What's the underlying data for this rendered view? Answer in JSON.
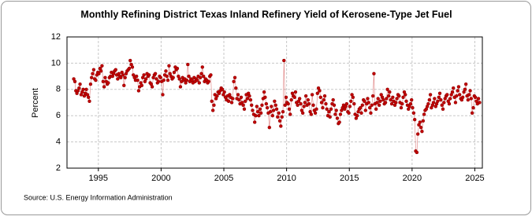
{
  "chart_data": {
    "type": "scatter",
    "title": "Monthly Refining District Texas Inland Refinery Yield of Kerosene-Type Jet Fuel",
    "y_label": "Percent",
    "source": "Source: U.S. Energy Information Administration",
    "color": "#c00000",
    "grid": true,
    "xlim": [
      1992.5,
      2025.6
    ],
    "xticks": [
      1995,
      2000,
      2005,
      2010,
      2015,
      2020,
      2025
    ],
    "ylim": [
      2,
      12
    ],
    "yticks": [
      2,
      4,
      6,
      8,
      10,
      12
    ],
    "x": [
      1993.04,
      1993.13,
      1993.21,
      1993.29,
      1993.38,
      1993.46,
      1993.54,
      1993.63,
      1993.71,
      1993.79,
      1993.88,
      1993.96,
      1994.04,
      1994.13,
      1994.21,
      1994.29,
      1994.38,
      1994.46,
      1994.54,
      1994.63,
      1994.71,
      1994.79,
      1994.88,
      1994.96,
      1995.04,
      1995.13,
      1995.21,
      1995.29,
      1995.38,
      1995.46,
      1995.54,
      1995.63,
      1995.71,
      1995.79,
      1995.88,
      1995.96,
      1996.04,
      1996.13,
      1996.21,
      1996.29,
      1996.38,
      1996.46,
      1996.54,
      1996.63,
      1996.71,
      1996.79,
      1996.88,
      1996.96,
      1997.04,
      1997.13,
      1997.21,
      1997.29,
      1997.38,
      1997.46,
      1997.54,
      1997.63,
      1997.71,
      1997.79,
      1997.88,
      1997.96,
      1998.04,
      1998.13,
      1998.21,
      1998.29,
      1998.38,
      1998.46,
      1998.54,
      1998.63,
      1998.71,
      1998.79,
      1998.88,
      1998.96,
      1999.04,
      1999.13,
      1999.21,
      1999.29,
      1999.38,
      1999.46,
      1999.54,
      1999.63,
      1999.71,
      1999.79,
      1999.88,
      1999.96,
      2000.04,
      2000.13,
      2000.21,
      2000.29,
      2000.38,
      2000.46,
      2000.54,
      2000.63,
      2000.71,
      2000.79,
      2000.88,
      2000.96,
      2001.04,
      2001.13,
      2001.21,
      2001.29,
      2001.38,
      2001.46,
      2001.54,
      2001.63,
      2001.71,
      2001.79,
      2001.88,
      2001.96,
      2002.04,
      2002.13,
      2002.21,
      2002.29,
      2002.38,
      2002.46,
      2002.54,
      2002.63,
      2002.71,
      2002.79,
      2002.88,
      2002.96,
      2003.04,
      2003.13,
      2003.21,
      2003.29,
      2003.38,
      2003.46,
      2003.54,
      2003.63,
      2003.71,
      2003.79,
      2003.88,
      2003.96,
      2004.04,
      2004.13,
      2004.21,
      2004.29,
      2004.38,
      2004.46,
      2004.54,
      2004.63,
      2004.71,
      2004.79,
      2004.88,
      2004.96,
      2005.04,
      2005.13,
      2005.21,
      2005.29,
      2005.38,
      2005.46,
      2005.54,
      2005.63,
      2005.71,
      2005.79,
      2005.88,
      2005.96,
      2006.04,
      2006.13,
      2006.21,
      2006.29,
      2006.38,
      2006.46,
      2006.54,
      2006.63,
      2006.71,
      2006.79,
      2006.88,
      2006.96,
      2007.04,
      2007.13,
      2007.21,
      2007.29,
      2007.38,
      2007.46,
      2007.54,
      2007.63,
      2007.71,
      2007.79,
      2007.88,
      2007.96,
      2008.04,
      2008.13,
      2008.21,
      2008.29,
      2008.38,
      2008.46,
      2008.54,
      2008.63,
      2008.71,
      2008.79,
      2008.88,
      2008.96,
      2009.04,
      2009.13,
      2009.21,
      2009.29,
      2009.38,
      2009.46,
      2009.54,
      2009.63,
      2009.71,
      2009.79,
      2009.88,
      2009.96,
      2010.04,
      2010.13,
      2010.21,
      2010.29,
      2010.38,
      2010.46,
      2010.54,
      2010.63,
      2010.71,
      2010.79,
      2010.88,
      2010.96,
      2011.04,
      2011.13,
      2011.21,
      2011.29,
      2011.38,
      2011.46,
      2011.54,
      2011.63,
      2011.71,
      2011.79,
      2011.88,
      2011.96,
      2012.04,
      2012.13,
      2012.21,
      2012.29,
      2012.38,
      2012.46,
      2012.54,
      2012.63,
      2012.71,
      2012.79,
      2012.88,
      2012.96,
      2013.04,
      2013.13,
      2013.21,
      2013.29,
      2013.38,
      2013.46,
      2013.54,
      2013.63,
      2013.71,
      2013.79,
      2013.88,
      2013.96,
      2014.04,
      2014.13,
      2014.21,
      2014.29,
      2014.38,
      2014.46,
      2014.54,
      2014.63,
      2014.71,
      2014.79,
      2014.88,
      2014.96,
      2015.04,
      2015.13,
      2015.21,
      2015.29,
      2015.38,
      2015.46,
      2015.54,
      2015.63,
      2015.71,
      2015.79,
      2015.88,
      2015.96,
      2016.04,
      2016.13,
      2016.21,
      2016.29,
      2016.38,
      2016.46,
      2016.54,
      2016.63,
      2016.71,
      2016.79,
      2016.88,
      2016.96,
      2017.04,
      2017.13,
      2017.21,
      2017.29,
      2017.38,
      2017.46,
      2017.54,
      2017.63,
      2017.71,
      2017.79,
      2017.88,
      2017.96,
      2018.04,
      2018.13,
      2018.21,
      2018.29,
      2018.38,
      2018.46,
      2018.54,
      2018.63,
      2018.71,
      2018.79,
      2018.88,
      2018.96,
      2019.04,
      2019.13,
      2019.21,
      2019.29,
      2019.38,
      2019.46,
      2019.54,
      2019.63,
      2019.71,
      2019.79,
      2019.88,
      2019.96,
      2020.04,
      2020.13,
      2020.21,
      2020.29,
      2020.38,
      2020.46,
      2020.54,
      2020.63,
      2020.71,
      2020.79,
      2020.88,
      2020.96,
      2021.04,
      2021.13,
      2021.21,
      2021.29,
      2021.38,
      2021.46,
      2021.54,
      2021.63,
      2021.71,
      2021.79,
      2021.88,
      2021.96,
      2022.04,
      2022.13,
      2022.21,
      2022.29,
      2022.38,
      2022.46,
      2022.54,
      2022.63,
      2022.71,
      2022.79,
      2022.88,
      2022.96,
      2023.04,
      2023.13,
      2023.21,
      2023.29,
      2023.38,
      2023.46,
      2023.54,
      2023.63,
      2023.71,
      2023.79,
      2023.88,
      2023.96,
      2024.04,
      2024.13,
      2024.21,
      2024.29,
      2024.38,
      2024.46,
      2024.54,
      2024.63,
      2024.71,
      2024.79,
      2024.88,
      2024.96,
      2025.04,
      2025.13,
      2025.21,
      2025.29,
      2025.38
    ],
    "values": [
      8.8,
      8.6,
      7.9,
      7.7,
      7.9,
      8.1,
      8.4,
      7.6,
      7.8,
      8.0,
      7.5,
      7.7,
      8.0,
      7.6,
      7.4,
      7.1,
      8.4,
      8.9,
      9.2,
      9.5,
      8.8,
      8.7,
      9.1,
      9.3,
      9.2,
      9.6,
      9.4,
      9.8,
      8.6,
      8.2,
      8.9,
      8.6,
      8.4,
      8.5,
      8.9,
      9.0,
      9.3,
      9.0,
      9.2,
      9.4,
      9.5,
      9.1,
      8.8,
      9.2,
      9.0,
      8.9,
      9.3,
      9.1,
      8.3,
      8.9,
      9.2,
      9.4,
      9.5,
      9.6,
      10.2,
      9.9,
      9.7,
      9.1,
      8.9,
      8.7,
      9.0,
      8.7,
      7.9,
      8.2,
      8.5,
      8.3,
      8.9,
      9.1,
      8.6,
      8.8,
      9.2,
      9.0,
      9.1,
      8.5,
      8.4,
      8.2,
      8.9,
      9.1,
      9.2,
      8.8,
      8.5,
      8.6,
      9.0,
      8.9,
      8.6,
      7.6,
      8.7,
      9.1,
      9.4,
      9.0,
      8.7,
      9.8,
      9.2,
      9.0,
      8.8,
      8.9,
      9.3,
      9.7,
      9.5,
      9.6,
      9.0,
      8.8,
      8.2,
      8.6,
      8.9,
      8.7,
      8.8,
      8.5,
      8.7,
      9.9,
      9.0,
      8.6,
      8.8,
      8.7,
      8.5,
      8.9,
      8.6,
      8.8,
      8.7,
      9.0,
      8.5,
      8.9,
      9.2,
      9.7,
      9.0,
      8.6,
      8.8,
      8.7,
      8.5,
      8.6,
      9.0,
      9.1,
      7.1,
      6.4,
      6.8,
      7.6,
      7.3,
      7.5,
      7.8,
      7.7,
      7.9,
      8.1,
      8.0,
      7.6,
      7.8,
      7.4,
      7.2,
      7.5,
      7.1,
      7.6,
      7.4,
      7.0,
      7.3,
      8.6,
      8.9,
      8.1,
      7.3,
      7.6,
      7.2,
      6.9,
      7.4,
      7.0,
      6.8,
      6.5,
      7.1,
      7.6,
      7.3,
      7.7,
      7.5,
      7.2,
      6.8,
      6.4,
      6.1,
      5.5,
      6.0,
      6.7,
      6.3,
      6.0,
      6.5,
      6.2,
      6.8,
      7.3,
      7.8,
      7.4,
      6.9,
      6.6,
      6.2,
      5.1,
      6.3,
      6.7,
      6.0,
      6.4,
      7.1,
      6.8,
      6.5,
      5.9,
      6.2,
      5.6,
      5.2,
      5.9,
      6.3,
      10.2,
      6.8,
      7.4,
      7.0,
      6.9,
      6.5,
      6.1,
      7.2,
      7.7,
      7.5,
      7.4,
      7.8,
      7.0,
      6.8,
      7.1,
      7.3,
      6.9,
      6.4,
      6.2,
      6.7,
      7.0,
      7.5,
      6.8,
      7.2,
      6.9,
      6.3,
      6.1,
      7.6,
      6.8,
      6.4,
      6.2,
      6.5,
      7.7,
      8.1,
      7.9,
      7.4,
      7.0,
      6.6,
      7.2,
      7.5,
      6.9,
      6.5,
      6.0,
      6.3,
      5.9,
      6.5,
      6.9,
      7.2,
      6.8,
      6.1,
      6.4,
      5.8,
      5.4,
      5.5,
      6.1,
      6.4,
      6.6,
      6.8,
      6.5,
      6.7,
      6.9,
      6.3,
      6.2,
      6.7,
      7.1,
      7.6,
      7.4,
      6.9,
      6.1,
      5.8,
      6.0,
      6.3,
      6.5,
      6.6,
      6.2,
      6.8,
      7.2,
      7.1,
      6.4,
      6.9,
      7.3,
      7.0,
      6.6,
      6.2,
      6.8,
      7.5,
      9.2,
      6.9,
      6.5,
      7.0,
      7.3,
      6.8,
      7.1,
      7.6,
      7.4,
      7.2,
      6.9,
      7.0,
      7.3,
      8.0,
      7.5,
      7.8,
      7.2,
      6.9,
      7.4,
      7.1,
      6.8,
      7.0,
      7.3,
      7.6,
      7.5,
      7.0,
      6.6,
      6.9,
      7.4,
      7.8,
      7.6,
      7.1,
      6.8,
      6.5,
      6.7,
      6.9,
      7.2,
      6.6,
      6.2,
      5.7,
      3.3,
      3.2,
      4.6,
      5.3,
      5.5,
      5.1,
      4.8,
      5.6,
      6.1,
      6.4,
      6.5,
      6.7,
      6.9,
      7.2,
      7.6,
      6.6,
      6.8,
      7.0,
      7.3,
      6.7,
      6.9,
      7.1,
      7.4,
      7.7,
      7.2,
      6.8,
      6.5,
      7.0,
      7.3,
      7.5,
      7.6,
      7.1,
      6.9,
      7.3,
      7.6,
      7.8,
      8.1,
      7.4,
      7.0,
      7.5,
      7.9,
      8.2,
      7.6,
      7.3,
      7.2,
      7.4,
      7.8,
      8.0,
      8.4,
      7.5,
      7.2,
      7.6,
      7.9,
      7.3,
      6.2,
      6.6,
      7.5,
      7.4,
      7.1,
      6.9,
      7.3,
      7.0
    ]
  }
}
